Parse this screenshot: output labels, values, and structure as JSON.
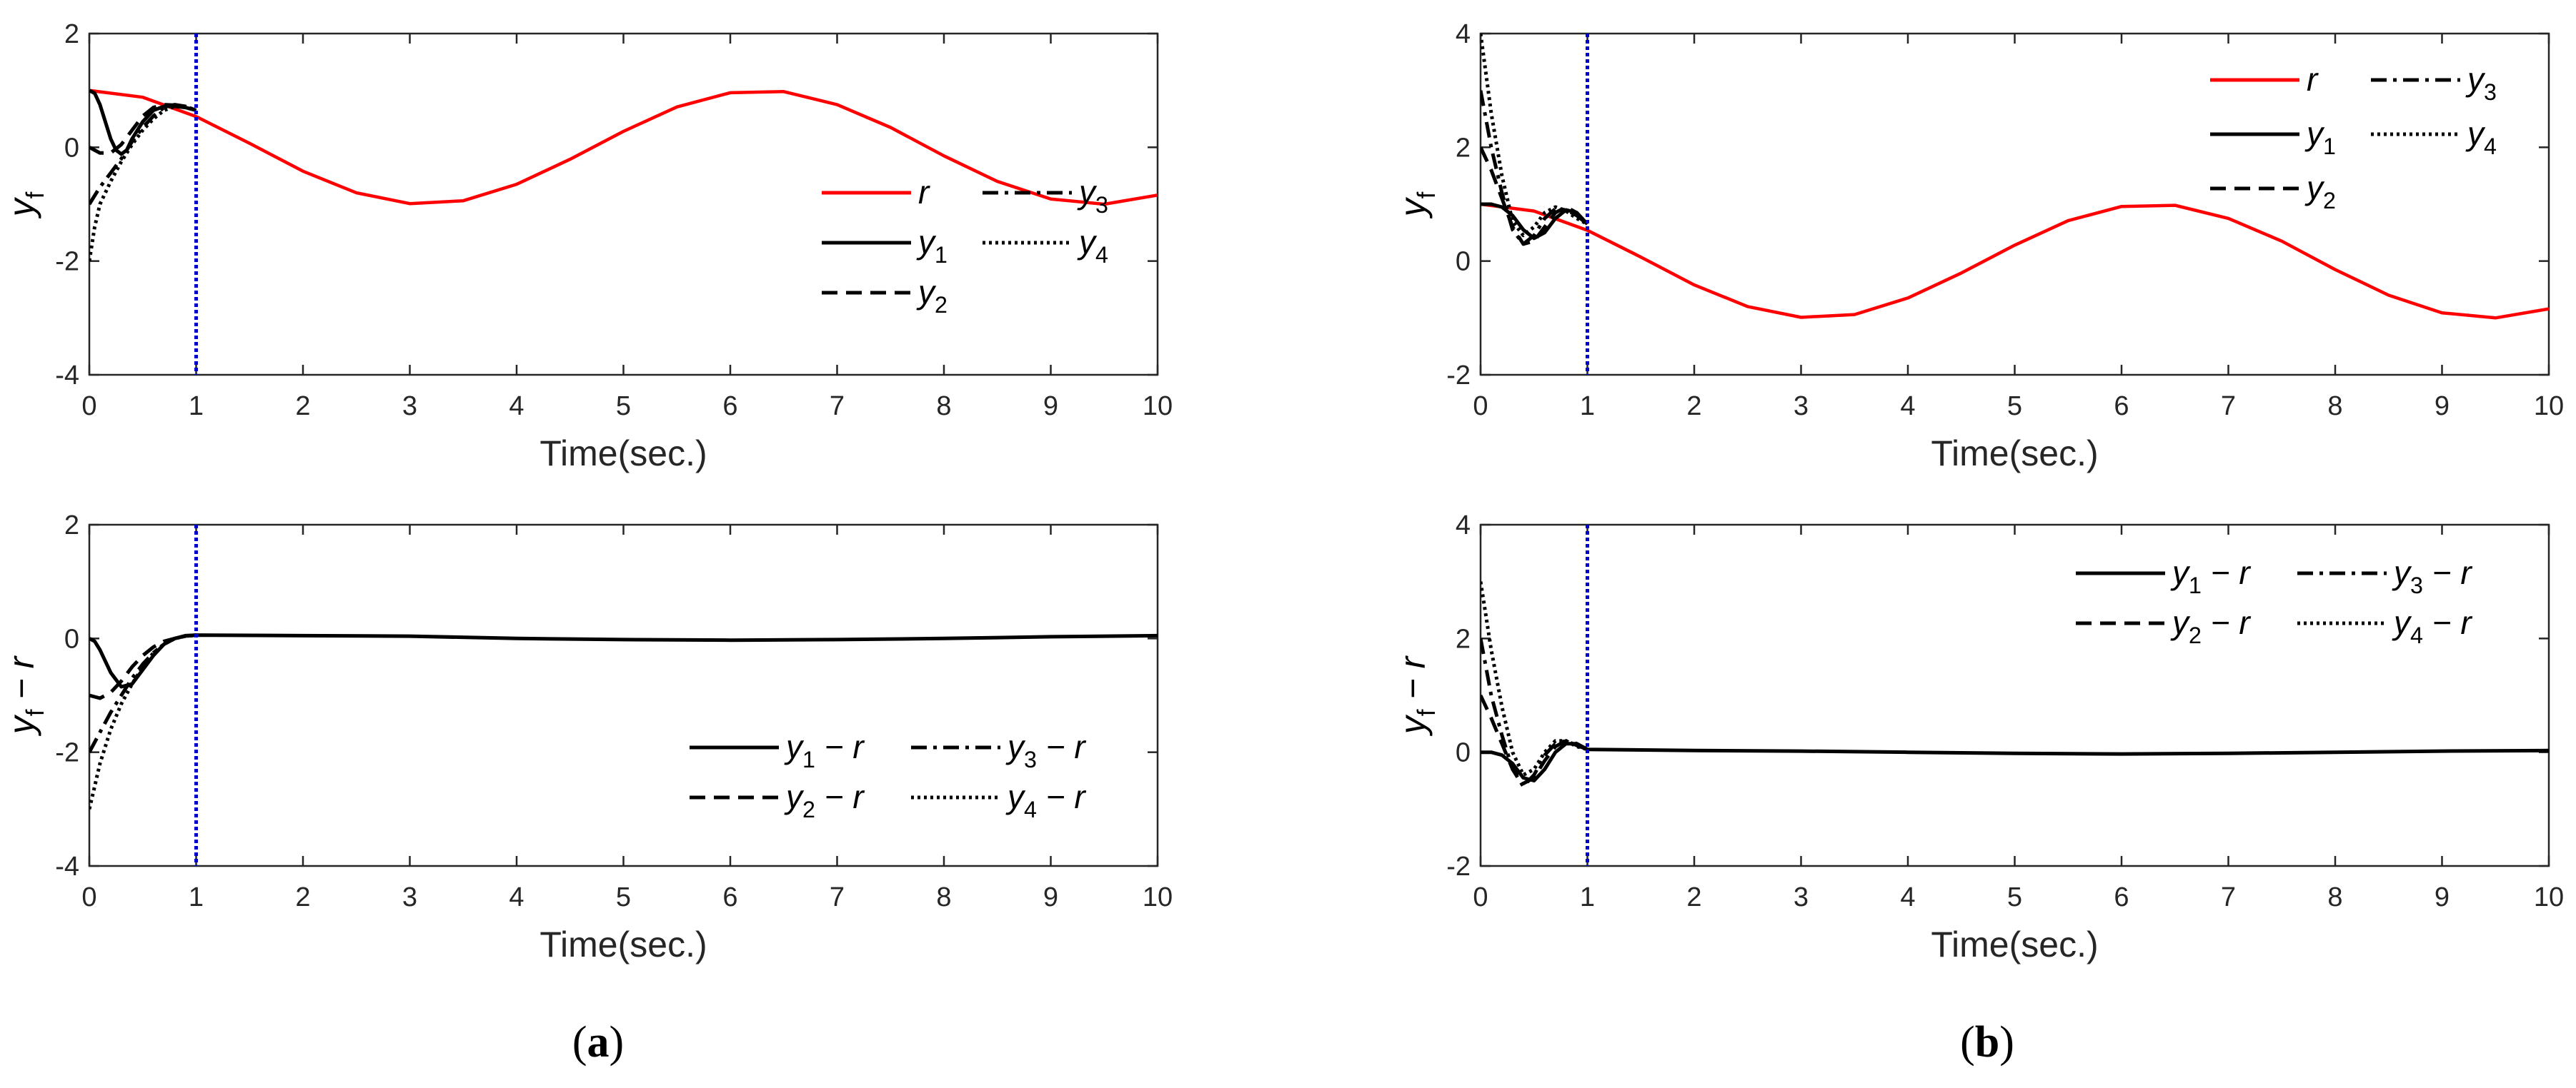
{
  "figure": {
    "panels": [
      {
        "id": "a",
        "label_open": "(",
        "label_letter": "a",
        "label_close": ")"
      },
      {
        "id": "b",
        "label_open": "(",
        "label_letter": "b",
        "label_close": ")"
      }
    ]
  },
  "colors": {
    "reference": "#ff0000",
    "outputs": "#000000",
    "marker_line": "#0000cc",
    "axes": "#262626"
  },
  "chart_data": [
    {
      "type": "line",
      "panel": "a-top",
      "xlabel": "Time(sec.)",
      "ylabel": "y_f",
      "xlim": [
        0,
        10
      ],
      "ylim": [
        -4,
        2
      ],
      "xticks": [
        "0",
        "1",
        "2",
        "3",
        "4",
        "5",
        "6",
        "7",
        "8",
        "9",
        "10"
      ],
      "yticks": [
        "-4",
        "-2",
        "0",
        "2"
      ],
      "grid": false,
      "vline_x": 1,
      "legend_position": "right-middle",
      "series": [
        {
          "name": "r",
          "sub": "",
          "tail": "",
          "style": "solid-red",
          "x": [
            0,
            0.5,
            1,
            1.5,
            2,
            2.5,
            3,
            3.5,
            4,
            4.5,
            5,
            5.5,
            6,
            6.5,
            7,
            7.5,
            8,
            8.5,
            9,
            9.5,
            10
          ],
          "y": [
            1.0,
            0.88,
            0.54,
            0.07,
            -0.42,
            -0.8,
            -0.99,
            -0.94,
            -0.65,
            -0.21,
            0.28,
            0.71,
            0.96,
            0.98,
            0.75,
            0.35,
            -0.15,
            -0.6,
            -0.91,
            -1.0,
            -0.84
          ]
        },
        {
          "name": "y",
          "sub": "1",
          "tail": "",
          "style": "solid",
          "x": [
            0,
            0.05,
            0.1,
            0.15,
            0.2,
            0.25,
            0.3,
            0.35,
            0.4,
            0.5,
            0.6,
            0.7,
            0.8,
            0.9,
            1
          ],
          "y": [
            1.0,
            0.95,
            0.75,
            0.45,
            0.15,
            -0.05,
            -0.12,
            -0.05,
            0.15,
            0.45,
            0.65,
            0.72,
            0.72,
            0.7,
            0.65
          ]
        },
        {
          "name": "y",
          "sub": "2",
          "tail": "",
          "style": "dashed",
          "x": [
            0,
            0.1,
            0.2,
            0.3,
            0.4,
            0.5,
            0.6,
            0.7,
            0.8,
            0.9,
            1
          ],
          "y": [
            0.0,
            -0.1,
            -0.1,
            0.05,
            0.3,
            0.55,
            0.7,
            0.75,
            0.74,
            0.7,
            0.65
          ]
        },
        {
          "name": "y",
          "sub": "3",
          "tail": "",
          "style": "dashdot",
          "x": [
            0,
            0.1,
            0.2,
            0.3,
            0.4,
            0.5,
            0.6,
            0.7,
            0.8,
            0.9,
            1
          ],
          "y": [
            -1.0,
            -0.7,
            -0.45,
            -0.2,
            0.1,
            0.35,
            0.55,
            0.7,
            0.75,
            0.72,
            0.65
          ]
        },
        {
          "name": "y",
          "sub": "4",
          "tail": "",
          "style": "dotted",
          "x": [
            0,
            0.05,
            0.1,
            0.2,
            0.3,
            0.4,
            0.5,
            0.6,
            0.7,
            0.8,
            0.9,
            1
          ],
          "y": [
            -2.0,
            -1.4,
            -1.0,
            -0.6,
            -0.25,
            0.05,
            0.3,
            0.5,
            0.65,
            0.72,
            0.72,
            0.65
          ]
        }
      ]
    },
    {
      "type": "line",
      "panel": "a-bottom",
      "xlabel": "Time(sec.)",
      "ylabel": "y_f - r",
      "xlim": [
        0,
        10
      ],
      "ylim": [
        -4,
        2
      ],
      "xticks": [
        "0",
        "1",
        "2",
        "3",
        "4",
        "5",
        "6",
        "7",
        "8",
        "9",
        "10"
      ],
      "yticks": [
        "-4",
        "-2",
        "0",
        "2"
      ],
      "grid": false,
      "vline_x": 1,
      "legend_position": "bottom-right",
      "series": [
        {
          "name": "y",
          "sub": "1",
          "tail": " − r",
          "style": "solid",
          "x": [
            0,
            0.05,
            0.1,
            0.2,
            0.3,
            0.4,
            0.5,
            0.6,
            0.7,
            0.8,
            0.9,
            1,
            2,
            3,
            4,
            5,
            6,
            7,
            8,
            9,
            10
          ],
          "y": [
            0.0,
            -0.05,
            -0.2,
            -0.6,
            -0.85,
            -0.8,
            -0.55,
            -0.3,
            -0.1,
            0.0,
            0.05,
            0.06,
            0.05,
            0.04,
            0.0,
            -0.02,
            -0.03,
            -0.02,
            0.0,
            0.03,
            0.05
          ]
        },
        {
          "name": "y",
          "sub": "2",
          "tail": " − r",
          "style": "dashed",
          "x": [
            0,
            0.1,
            0.2,
            0.3,
            0.4,
            0.5,
            0.6,
            0.7,
            0.8,
            0.9,
            1
          ],
          "y": [
            -1.0,
            -1.05,
            -0.95,
            -0.75,
            -0.5,
            -0.3,
            -0.15,
            -0.05,
            0.0,
            0.04,
            0.06
          ]
        },
        {
          "name": "y",
          "sub": "3",
          "tail": " − r",
          "style": "dashdot",
          "x": [
            0,
            0.1,
            0.2,
            0.3,
            0.4,
            0.5,
            0.6,
            0.7,
            0.8,
            0.9,
            1
          ],
          "y": [
            -2.0,
            -1.65,
            -1.3,
            -1.0,
            -0.7,
            -0.45,
            -0.25,
            -0.1,
            0.0,
            0.04,
            0.06
          ]
        },
        {
          "name": "y",
          "sub": "4",
          "tail": " − r",
          "style": "dotted",
          "x": [
            0,
            0.05,
            0.1,
            0.2,
            0.3,
            0.4,
            0.5,
            0.6,
            0.7,
            0.8,
            0.9,
            1
          ],
          "y": [
            -3.0,
            -2.6,
            -2.2,
            -1.6,
            -1.15,
            -0.8,
            -0.5,
            -0.25,
            -0.1,
            0.0,
            0.04,
            0.06
          ]
        }
      ]
    },
    {
      "type": "line",
      "panel": "b-top",
      "xlabel": "Time(sec.)",
      "ylabel": "y_f",
      "xlim": [
        0,
        10
      ],
      "ylim": [
        -2,
        4
      ],
      "xticks": [
        "0",
        "1",
        "2",
        "3",
        "4",
        "5",
        "6",
        "7",
        "8",
        "9",
        "10"
      ],
      "yticks": [
        "-2",
        "0",
        "2",
        "4"
      ],
      "grid": false,
      "vline_x": 1,
      "legend_position": "top-right",
      "series": [
        {
          "name": "r",
          "sub": "",
          "tail": "",
          "style": "solid-red",
          "x": [
            0,
            0.5,
            1,
            1.5,
            2,
            2.5,
            3,
            3.5,
            4,
            4.5,
            5,
            5.5,
            6,
            6.5,
            7,
            7.5,
            8,
            8.5,
            9,
            9.5,
            10
          ],
          "y": [
            1.0,
            0.88,
            0.54,
            0.07,
            -0.42,
            -0.8,
            -0.99,
            -0.94,
            -0.65,
            -0.21,
            0.28,
            0.71,
            0.96,
            0.98,
            0.75,
            0.35,
            -0.15,
            -0.6,
            -0.91,
            -1.0,
            -0.84
          ]
        },
        {
          "name": "y",
          "sub": "1",
          "tail": "",
          "style": "solid",
          "x": [
            0,
            0.1,
            0.2,
            0.3,
            0.4,
            0.5,
            0.6,
            0.7,
            0.8,
            0.9,
            1
          ],
          "y": [
            1.0,
            1.0,
            0.95,
            0.8,
            0.55,
            0.4,
            0.5,
            0.75,
            0.9,
            0.85,
            0.65
          ]
        },
        {
          "name": "y",
          "sub": "2",
          "tail": "",
          "style": "dashed",
          "x": [
            0,
            0.1,
            0.2,
            0.3,
            0.4,
            0.5,
            0.6,
            0.7,
            0.8,
            0.9,
            1
          ],
          "y": [
            2.0,
            1.6,
            1.1,
            0.6,
            0.3,
            0.35,
            0.6,
            0.85,
            0.95,
            0.85,
            0.65
          ]
        },
        {
          "name": "y",
          "sub": "3",
          "tail": "",
          "style": "dashdot",
          "x": [
            0,
            0.05,
            0.1,
            0.2,
            0.3,
            0.4,
            0.5,
            0.6,
            0.7,
            0.8,
            0.9,
            1
          ],
          "y": [
            3.0,
            2.5,
            2.0,
            1.2,
            0.55,
            0.3,
            0.45,
            0.75,
            0.92,
            0.9,
            0.8,
            0.65
          ]
        },
        {
          "name": "y",
          "sub": "4",
          "tail": "",
          "style": "dotted",
          "x": [
            0,
            0.05,
            0.1,
            0.2,
            0.3,
            0.4,
            0.5,
            0.6,
            0.7,
            0.8,
            0.9,
            1
          ],
          "y": [
            4.0,
            3.3,
            2.6,
            1.5,
            0.7,
            0.45,
            0.6,
            0.85,
            0.95,
            0.88,
            0.75,
            0.65
          ]
        }
      ]
    },
    {
      "type": "line",
      "panel": "b-bottom",
      "xlabel": "Time(sec.)",
      "ylabel": "y_f - r",
      "xlim": [
        0,
        10
      ],
      "ylim": [
        -2,
        4
      ],
      "xticks": [
        "0",
        "1",
        "2",
        "3",
        "4",
        "5",
        "6",
        "7",
        "8",
        "9",
        "10"
      ],
      "yticks": [
        "-2",
        "0",
        "2",
        "4"
      ],
      "grid": false,
      "vline_x": 1,
      "legend_position": "top-right",
      "series": [
        {
          "name": "y",
          "sub": "1",
          "tail": " − r",
          "style": "solid",
          "x": [
            0,
            0.1,
            0.2,
            0.3,
            0.4,
            0.5,
            0.6,
            0.7,
            0.8,
            0.9,
            1,
            2,
            3,
            4,
            5,
            6,
            7,
            8,
            9,
            10
          ],
          "y": [
            0.0,
            0.0,
            -0.05,
            -0.2,
            -0.45,
            -0.5,
            -0.3,
            0.0,
            0.15,
            0.15,
            0.05,
            0.03,
            0.02,
            0.0,
            -0.02,
            -0.03,
            -0.02,
            0.0,
            0.02,
            0.03
          ]
        },
        {
          "name": "y",
          "sub": "2",
          "tail": " − r",
          "style": "dashed",
          "x": [
            0,
            0.1,
            0.2,
            0.3,
            0.4,
            0.5,
            0.6,
            0.7,
            0.8,
            0.9,
            1
          ],
          "y": [
            1.0,
            0.6,
            0.15,
            -0.3,
            -0.55,
            -0.45,
            -0.15,
            0.1,
            0.2,
            0.15,
            0.05
          ]
        },
        {
          "name": "y",
          "sub": "3",
          "tail": " − r",
          "style": "dashdot",
          "x": [
            0,
            0.05,
            0.1,
            0.2,
            0.3,
            0.4,
            0.5,
            0.6,
            0.7,
            0.8,
            0.9,
            1
          ],
          "y": [
            2.0,
            1.5,
            1.0,
            0.3,
            -0.3,
            -0.6,
            -0.4,
            -0.05,
            0.15,
            0.2,
            0.12,
            0.05
          ]
        },
        {
          "name": "y",
          "sub": "4",
          "tail": " − r",
          "style": "dotted",
          "x": [
            0,
            0.05,
            0.1,
            0.2,
            0.3,
            0.4,
            0.5,
            0.6,
            0.7,
            0.8,
            0.9,
            1
          ],
          "y": [
            3.0,
            2.4,
            1.8,
            0.8,
            0.0,
            -0.4,
            -0.3,
            0.0,
            0.2,
            0.2,
            0.1,
            0.05
          ]
        }
      ]
    }
  ]
}
